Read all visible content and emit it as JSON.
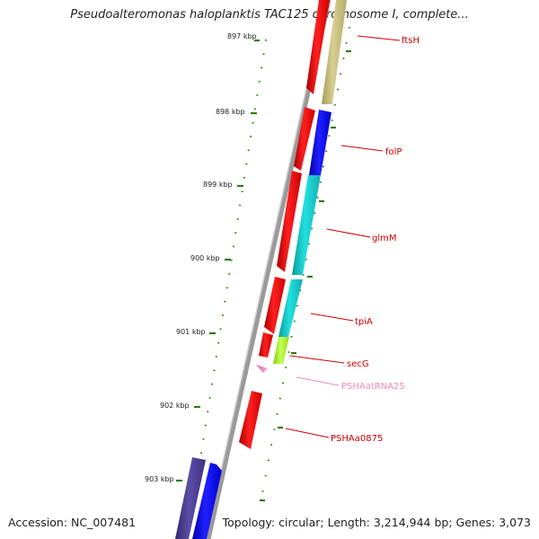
{
  "title": "Pseudoalteromonas haloplanktis TAC125 chromosome I, complete...",
  "footer": {
    "accession": "Accession: NC_007481",
    "summary": "Topology: circular; Length: 3,214,944 bp; Genes: 3,073"
  },
  "scale": [
    "897 kbp",
    "898 kbp",
    "899 kbp",
    "900 kbp",
    "901 kbp",
    "902 kbp",
    "903 kbp"
  ],
  "genes": [
    {
      "id": "ftsH",
      "label": "ftsH",
      "color": "#cc0000"
    },
    {
      "id": "folP",
      "label": "folP",
      "color": "#cc0000"
    },
    {
      "id": "glmM",
      "label": "glmM",
      "color": "#cc0000"
    },
    {
      "id": "tpiA",
      "label": "tpiA",
      "color": "#cc0000"
    },
    {
      "id": "secG",
      "label": "secG",
      "color": "#cc0000"
    },
    {
      "id": "trna",
      "label": "PSHAatRNA25",
      "color": "#ee88bb"
    },
    {
      "id": "a0875",
      "label": "PSHAa0875",
      "color": "#cc0000"
    }
  ],
  "colors": {
    "backbone": "#888888",
    "forward_cds": "#ff0000",
    "reverse_cds": "#ff0000",
    "tick": "#2e7d12",
    "olive": "#c2b97a",
    "blue": "#0000ee",
    "cyan": "#11c4c4",
    "lime": "#a6f02e",
    "pink": "#ee88bb",
    "purple": "#4a3e8c"
  }
}
